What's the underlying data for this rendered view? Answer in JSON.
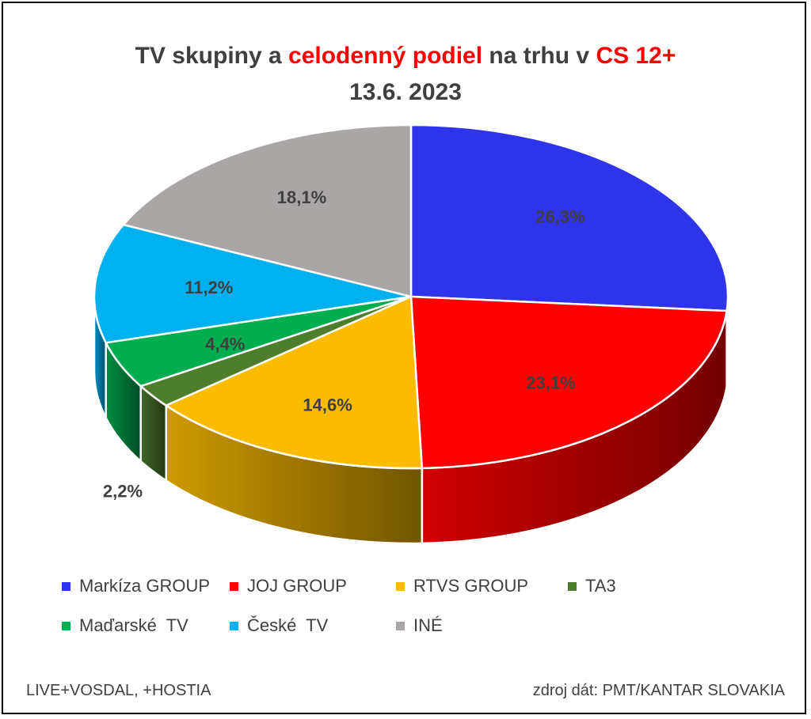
{
  "header": {
    "title_part1": "TV skupiny a ",
    "title_highlight1": "celodenný podiel",
    "title_part2": " na trhu v ",
    "title_highlight2": "CS 12+",
    "title_line2": "13.6. 2023"
  },
  "chart_data": {
    "type": "pie",
    "style": "3d",
    "categories": [
      "Markíza GROUP",
      "JOJ GROUP",
      "RTVS GROUP",
      "TA3",
      "Maďarské  TV",
      "České  TV",
      "INÉ"
    ],
    "values": [
      26.3,
      23.1,
      14.6,
      2.2,
      4.4,
      11.2,
      18.1
    ],
    "data_labels": [
      "26,3%",
      "23,1%",
      "14,6%",
      "2,2%",
      "4,4%",
      "11,2%",
      "18,1%"
    ],
    "colors": [
      "#2f33ea",
      "#ff0000",
      "#fbbc00",
      "#4e7d2e",
      "#00ae4f",
      "#00b0ef",
      "#aaa6a6"
    ],
    "legend_position": "bottom"
  },
  "footer": {
    "left": "LIVE+VOSDAL, +HOSTIA",
    "right": "zdroj dát: PMT/KANTAR SLOVAKIA"
  }
}
